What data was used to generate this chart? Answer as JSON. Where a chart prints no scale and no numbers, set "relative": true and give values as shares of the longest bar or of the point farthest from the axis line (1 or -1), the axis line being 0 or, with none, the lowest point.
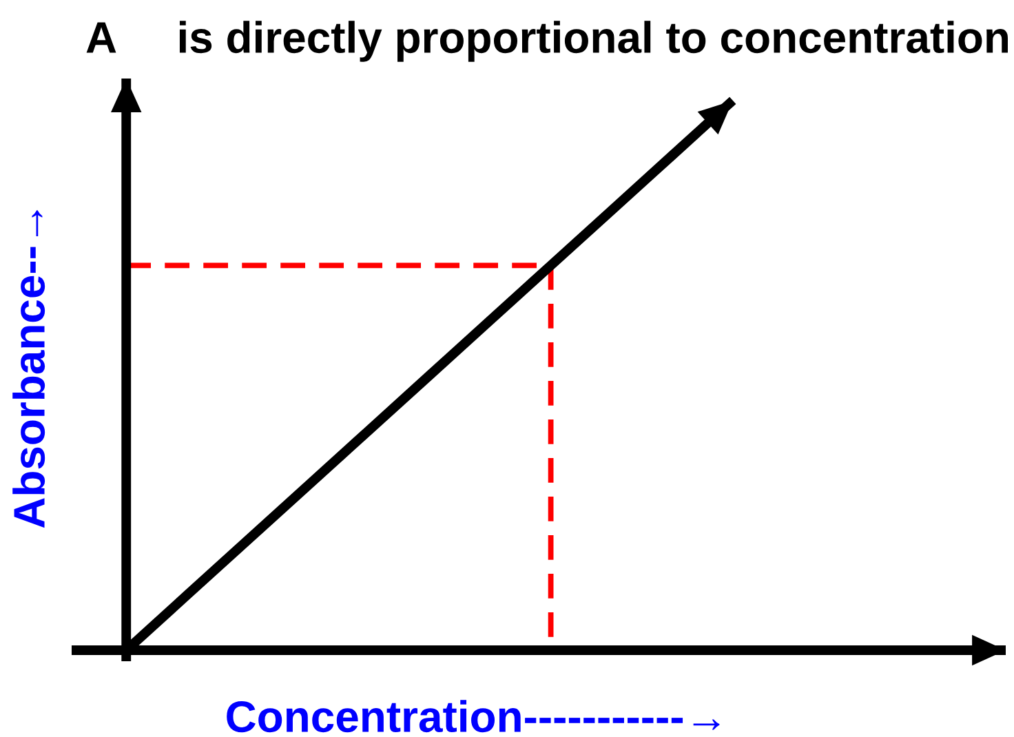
{
  "chart_data": {
    "type": "line",
    "title": "A     is directly proportional to concentration",
    "xlabel": "Concentration-----------→",
    "ylabel": "Absorbance--→",
    "relative": true,
    "categories": [
      null,
      null,
      null,
      null,
      null,
      null,
      null,
      null,
      null,
      null,
      null,
      null,
      null,
      null,
      null
    ],
    "series": [
      {
        "color": "#000000",
        "values": [
          0,
          0.1,
          0.2,
          0.3,
          0.4,
          0.5,
          0.6,
          0.7,
          0.8,
          0.9,
          1.0,
          null,
          null,
          null,
          null
        ]
      },
      {
        "type": "step",
        "color": "#ff0000",
        "line_style": "dashed",
        "values": [
          0.7,
          0.7,
          0.7,
          0.7,
          0.7,
          0.7,
          0.7,
          0,
          null,
          null,
          null,
          null,
          null,
          null,
          null
        ]
      }
    ]
  }
}
